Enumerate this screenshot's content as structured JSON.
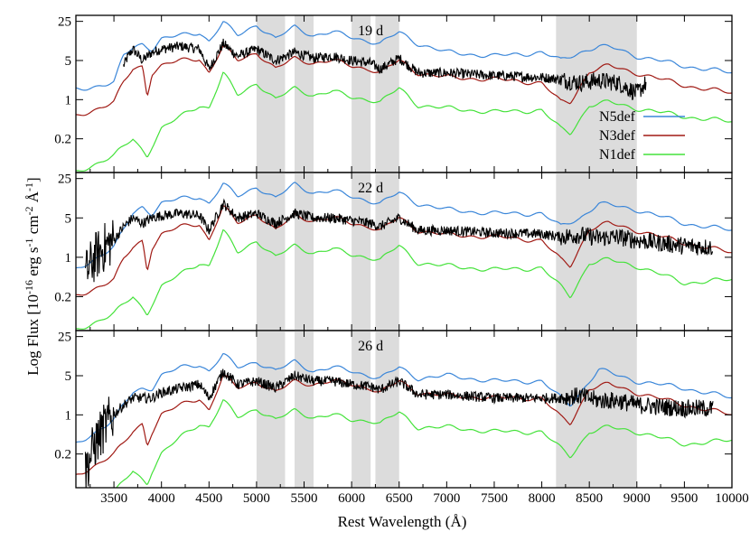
{
  "chart_data": {
    "type": "line",
    "xlabel": "Rest Wavelength (Å)",
    "ylabel": {
      "prefix": "Log Flux [10",
      "exp1": "-16",
      "mid1": " erg s",
      "exp2": "-1",
      "mid2": " cm",
      "exp3": "-2",
      "mid3": " Å",
      "exp4": "-1",
      "suffix": "]"
    },
    "xlim": [
      3100,
      10000
    ],
    "ylim_log": [
      0.05,
      32
    ],
    "x_ticks": [
      3500,
      4000,
      4500,
      5000,
      5500,
      6000,
      6500,
      7000,
      7500,
      8000,
      8500,
      9000,
      9500,
      10000
    ],
    "y_ticks": [
      0.2,
      1,
      5,
      25
    ],
    "y_tick_labels": [
      "0.2",
      "1",
      "5",
      "25"
    ],
    "shaded_bands": [
      [
        5000,
        5300
      ],
      [
        5400,
        5600
      ],
      [
        6000,
        6200
      ],
      [
        6250,
        6500
      ],
      [
        8150,
        9000
      ]
    ],
    "legend": {
      "placement": "inside upper-right of top panel",
      "entries": [
        {
          "label": "N5def",
          "color": "#3a86d9"
        },
        {
          "label": "N3def",
          "color": "#a01a14"
        },
        {
          "label": "N1def",
          "color": "#44e23a"
        }
      ]
    },
    "colors": {
      "observed": "#000000",
      "N5def": "#3a86d9",
      "N3def": "#a01a14",
      "N1def": "#44e23a",
      "band": "#dcdcdc"
    },
    "panels": [
      {
        "epoch": "19 d",
        "series": [
          {
            "name": "N5def",
            "x": [
              3100,
              3500,
              3600,
              3700,
              3800,
              3900,
              4000,
              4200,
              4400,
              4500,
              4650,
              4800,
              5000,
              5200,
              5400,
              5600,
              5800,
              6000,
              6200,
              6300,
              6500,
              6700,
              7000,
              7500,
              8000,
              8200,
              8400,
              8600,
              8800,
              9000,
              9500,
              10000
            ],
            "y": [
              1.5,
              2.0,
              6.0,
              8.5,
              10,
              8.0,
              12,
              14,
              16,
              11,
              24,
              14,
              22,
              12,
              20,
              14,
              16,
              13,
              11,
              10,
              16,
              10,
              7,
              6,
              7,
              5,
              7,
              9,
              8,
              6,
              4,
              3
            ]
          },
          {
            "name": "N3def",
            "x": [
              3100,
              3500,
              3600,
              3700,
              3800,
              3850,
              3900,
              4000,
              4200,
              4400,
              4500,
              4650,
              4800,
              5000,
              5200,
              5400,
              5600,
              5800,
              6000,
              6200,
              6300,
              6500,
              6700,
              7000,
              7500,
              8000,
              8200,
              8300,
              8500,
              8700,
              9000,
              9500,
              10000
            ],
            "y": [
              0.5,
              0.9,
              2.0,
              3.5,
              4.0,
              1.2,
              3.0,
              4.0,
              5.0,
              5.5,
              3.0,
              9.0,
              5.0,
              7.0,
              3.5,
              5.5,
              4.5,
              5.0,
              4.0,
              3.5,
              3.0,
              5.0,
              3.0,
              2.5,
              2.3,
              2.0,
              0.9,
              0.9,
              3.2,
              4.0,
              3.0,
              1.8,
              1.3
            ]
          },
          {
            "name": "N1def",
            "x": [
              3100,
              3500,
              3700,
              3850,
              3900,
              4000,
              4200,
              4400,
              4500,
              4650,
              4800,
              5000,
              5200,
              5400,
              5600,
              5800,
              6000,
              6200,
              6300,
              6500,
              6700,
              7000,
              7500,
              8000,
              8200,
              8300,
              8500,
              8700,
              9000,
              9500,
              10000
            ],
            "y": [
              0.05,
              0.1,
              0.2,
              0.1,
              0.15,
              0.3,
              0.5,
              0.8,
              0.7,
              3.0,
              1.2,
              2.0,
              1.0,
              1.6,
              1.2,
              1.4,
              1.1,
              1.0,
              0.9,
              1.6,
              0.8,
              0.7,
              0.6,
              0.65,
              0.3,
              0.25,
              0.8,
              0.9,
              0.7,
              0.5,
              0.4
            ]
          },
          {
            "name": "Observed",
            "x": [
              3600,
              3650,
              3700,
              3800,
              3900,
              4000,
              4200,
              4400,
              4500,
              4650,
              4800,
              5000,
              5200,
              5400,
              5600,
              5800,
              6000,
              6200,
              6300,
              6500,
              6700,
              7000,
              7500,
              8000,
              8200,
              8400,
              8600,
              8800,
              9000,
              9100
            ],
            "y": [
              4.0,
              6.0,
              8.0,
              5.0,
              7.0,
              8.0,
              9.0,
              8.0,
              3.5,
              10,
              6.0,
              8.0,
              5.0,
              7.0,
              5.5,
              6.0,
              5.0,
              4.5,
              3.5,
              5.5,
              3.0,
              3.0,
              2.7,
              2.5,
              2.3,
              2.0,
              2.2,
              2.0,
              1.3,
              2.0
            ]
          }
        ]
      },
      {
        "epoch": "22 d",
        "series": [
          {
            "name": "N5def",
            "x": [
              3100,
              3500,
              3600,
              3700,
              3800,
              3900,
              4000,
              4200,
              4400,
              4500,
              4650,
              4800,
              5000,
              5200,
              5400,
              5600,
              5800,
              6000,
              6200,
              6300,
              6500,
              6700,
              7000,
              7500,
              8000,
              8200,
              8400,
              8600,
              8800,
              9000,
              9500,
              10000
            ],
            "y": [
              0.6,
              1.5,
              3.0,
              6.0,
              8.0,
              6.0,
              9.0,
              11,
              12,
              9.0,
              20,
              12,
              18,
              11,
              20,
              14,
              15,
              12,
              10,
              9.0,
              14,
              9.0,
              7.0,
              6.0,
              6.0,
              3.5,
              5.0,
              9.0,
              8.0,
              7.0,
              4.0,
              3.0
            ]
          },
          {
            "name": "N3def",
            "x": [
              3100,
              3500,
              3600,
              3700,
              3800,
              3850,
              3900,
              4000,
              4200,
              4400,
              4500,
              4650,
              4800,
              5000,
              5200,
              5400,
              5600,
              5800,
              6000,
              6200,
              6300,
              6500,
              6700,
              7000,
              7500,
              8000,
              8200,
              8300,
              8500,
              8700,
              9000,
              9500,
              10000
            ],
            "y": [
              0.2,
              0.4,
              0.9,
              1.5,
              2.0,
              0.6,
              1.5,
              2.5,
              3.5,
              4.0,
              2.0,
              8.0,
              4.0,
              6.0,
              3.0,
              5.5,
              4.5,
              5.0,
              4.0,
              3.5,
              3.0,
              5.0,
              3.0,
              2.5,
              2.3,
              2.0,
              0.9,
              0.7,
              3.2,
              4.0,
              3.0,
              1.8,
              1.2
            ]
          },
          {
            "name": "N1def",
            "x": [
              3100,
              3500,
              3700,
              3850,
              3900,
              4000,
              4200,
              4400,
              4500,
              4650,
              4800,
              5000,
              5200,
              5400,
              5600,
              5800,
              6000,
              6200,
              6300,
              6500,
              6700,
              7000,
              7500,
              8000,
              8200,
              8300,
              8500,
              8700,
              9000,
              9500,
              10000
            ],
            "y": [
              0.05,
              0.1,
              0.2,
              0.1,
              0.15,
              0.3,
              0.5,
              0.8,
              0.7,
              3.0,
              1.2,
              2.0,
              1.0,
              1.6,
              1.2,
              1.4,
              1.1,
              1.0,
              0.9,
              1.6,
              0.8,
              0.7,
              0.6,
              0.65,
              0.3,
              0.2,
              0.8,
              0.9,
              0.7,
              0.35,
              0.4
            ]
          },
          {
            "name": "Observed",
            "x": [
              3200,
              3300,
              3400,
              3500,
              3600,
              3700,
              3800,
              3900,
              4000,
              4200,
              4400,
              4500,
              4650,
              4800,
              5000,
              5200,
              5400,
              5600,
              5800,
              6000,
              6200,
              6300,
              6500,
              6700,
              7000,
              7500,
              8000,
              8200,
              8400,
              8600,
              8800,
              9000,
              9500,
              9800
            ],
            "y": [
              0.5,
              1.0,
              1.5,
              2.0,
              3.5,
              5.0,
              4.0,
              5.0,
              5.5,
              6.0,
              5.5,
              3.0,
              9.0,
              5.0,
              6.0,
              4.0,
              6.0,
              5.0,
              5.0,
              4.5,
              4.0,
              3.5,
              5.0,
              3.0,
              3.0,
              2.7,
              2.6,
              2.3,
              2.5,
              2.2,
              2.3,
              2.0,
              1.6,
              1.5
            ]
          }
        ]
      },
      {
        "epoch": "26 d",
        "series": [
          {
            "name": "N5def",
            "x": [
              3100,
              3500,
              3600,
              3700,
              3800,
              3900,
              4000,
              4200,
              4400,
              4500,
              4650,
              4800,
              5000,
              5200,
              5400,
              5600,
              5800,
              6000,
              6200,
              6300,
              6500,
              6700,
              7000,
              7500,
              8000,
              8200,
              8300,
              8600,
              8800,
              9000,
              9500,
              10000
            ],
            "y": [
              0.3,
              0.8,
              1.5,
              2.5,
              3.0,
              3.0,
              5.0,
              7.0,
              8.0,
              6.0,
              12,
              7.0,
              9.0,
              6.0,
              9.0,
              6.0,
              7.0,
              6.0,
              5.0,
              4.5,
              7.0,
              4.5,
              5.0,
              4.0,
              4.0,
              2.0,
              1.5,
              6.5,
              5.0,
              4.0,
              3.0,
              2.0
            ]
          },
          {
            "name": "N3def",
            "x": [
              3100,
              3500,
              3600,
              3700,
              3800,
              3850,
              3900,
              4000,
              4200,
              4400,
              4500,
              4650,
              4800,
              5000,
              5200,
              5400,
              5600,
              5800,
              6000,
              6200,
              6300,
              6500,
              6700,
              7000,
              7500,
              8000,
              8200,
              8300,
              8500,
              8700,
              9000,
              9500,
              10000
            ],
            "y": [
              0.08,
              0.2,
              0.3,
              0.5,
              0.7,
              0.3,
              0.5,
              1.0,
              1.5,
              2.0,
              1.2,
              5.0,
              3.0,
              4.0,
              2.5,
              4.0,
              3.5,
              4.0,
              3.5,
              3.0,
              2.5,
              4.0,
              2.5,
              2.2,
              2.0,
              2.0,
              0.9,
              0.7,
              3.0,
              3.5,
              2.5,
              1.5,
              1.0
            ]
          },
          {
            "name": "N1def",
            "x": [
              3100,
              3500,
              3700,
              3850,
              3900,
              4000,
              4200,
              4400,
              4500,
              4650,
              4800,
              5000,
              5200,
              5400,
              5600,
              5800,
              6000,
              6200,
              6300,
              6500,
              6700,
              7000,
              7500,
              8000,
              8200,
              8300,
              8500,
              8700,
              9000,
              9500,
              10000
            ],
            "y": [
              0.02,
              0.04,
              0.1,
              0.06,
              0.1,
              0.2,
              0.4,
              0.7,
              0.6,
              1.8,
              0.9,
              1.3,
              0.8,
              1.2,
              0.9,
              1.0,
              0.8,
              0.8,
              0.7,
              1.1,
              0.6,
              0.6,
              0.5,
              0.5,
              0.25,
              0.18,
              0.5,
              0.6,
              0.5,
              0.3,
              0.35
            ]
          },
          {
            "name": "Observed",
            "x": [
              3200,
              3300,
              3400,
              3500,
              3600,
              3700,
              3800,
              3900,
              4000,
              4200,
              4400,
              4500,
              4650,
              4800,
              5000,
              5200,
              5400,
              5600,
              5800,
              6000,
              6200,
              6300,
              6500,
              6700,
              7000,
              7500,
              8000,
              8200,
              8400,
              8600,
              8800,
              9000,
              9500,
              9800
            ],
            "y": [
              0.1,
              0.3,
              0.6,
              1.0,
              1.5,
              2.0,
              2.0,
              2.0,
              2.5,
              3.0,
              3.5,
              2.0,
              6.0,
              3.5,
              4.0,
              3.0,
              5.0,
              4.0,
              4.0,
              3.5,
              3.2,
              2.8,
              4.0,
              2.3,
              2.3,
              2.0,
              2.0,
              2.0,
              2.2,
              1.8,
              1.8,
              1.5,
              1.3,
              1.3
            ]
          }
        ]
      }
    ]
  }
}
